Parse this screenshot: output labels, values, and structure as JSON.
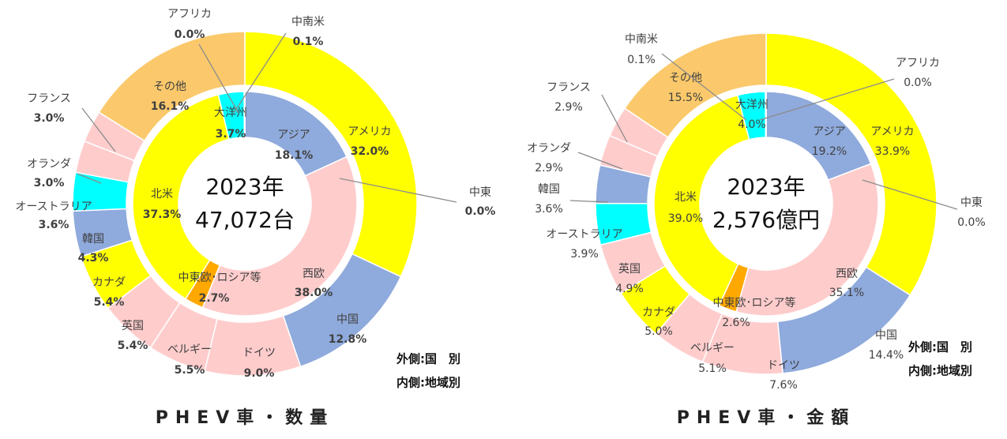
{
  "chart_data": [
    {
      "type": "donut",
      "title": "PHEV車・数量",
      "center_text": [
        "2023年",
        "47,072台"
      ],
      "notes": [
        "外側:国　別",
        "内側:地域別"
      ],
      "inner": {
        "categories": [
          "アジア",
          "中東",
          "西欧",
          "中東欧･ロシア等",
          "北米",
          "大洋州",
          "中南米",
          "アフリカ"
        ],
        "values": [
          18.1,
          0.0,
          38.0,
          2.7,
          37.3,
          3.7,
          0.1,
          0.0
        ],
        "value_labels": [
          "18.1%",
          "0.0%",
          "38.0%",
          "2.7%",
          "37.3%",
          "3.7%",
          "0.1%",
          "0.0%"
        ],
        "colors": [
          "#8faadc",
          "#ffcccc",
          "#ffcccc",
          "#ffa800",
          "#ffff00",
          "#00ffff",
          "#70ad47",
          "#c00000"
        ]
      },
      "outer": {
        "categories": [
          "アメリカ",
          "中国",
          "ドイツ",
          "ベルギー",
          "英国",
          "カナダ",
          "韓国",
          "オーストラリア",
          "オランダ",
          "フランス",
          "その他"
        ],
        "values": [
          32.0,
          12.8,
          9.0,
          5.5,
          5.4,
          5.4,
          4.3,
          3.6,
          3.0,
          3.0,
          16.1
        ],
        "value_labels": [
          "32.0%",
          "12.8%",
          "9.0%",
          "5.5%",
          "5.4%",
          "5.4%",
          "4.3%",
          "3.6%",
          "3.0%",
          "3.0%",
          "16.1%"
        ],
        "colors": [
          "#ffff00",
          "#8faadc",
          "#ffcccc",
          "#ffcccc",
          "#ffcccc",
          "#ffff00",
          "#8faadc",
          "#00ffff",
          "#ffcccc",
          "#ffcccc",
          "#fbc96b"
        ]
      }
    },
    {
      "type": "donut",
      "title": "PHEV車・金額",
      "center_text": [
        "2023年",
        "2,576億円"
      ],
      "notes": [
        "外側:国　別",
        "内側:地域別"
      ],
      "inner": {
        "categories": [
          "アジア",
          "中東",
          "西欧",
          "中東欧･ロシア等",
          "北米",
          "大洋州",
          "中南米",
          "アフリカ"
        ],
        "values": [
          19.2,
          0.0,
          35.1,
          2.6,
          39.0,
          4.0,
          0.1,
          0.0
        ],
        "value_labels": [
          "19.2%",
          "0.0%",
          "35.1%",
          "2.6%",
          "39.0%",
          "4.0%",
          "0.1%",
          "0.0%"
        ],
        "colors": [
          "#8faadc",
          "#ffcccc",
          "#ffcccc",
          "#ffa800",
          "#ffff00",
          "#00ffff",
          "#70ad47",
          "#c00000"
        ]
      },
      "outer": {
        "categories": [
          "アメリカ",
          "中国",
          "ドイツ",
          "ベルギー",
          "カナダ",
          "英国",
          "オーストラリア",
          "韓国",
          "オランダ",
          "フランス",
          "その他"
        ],
        "values": [
          33.9,
          14.4,
          7.6,
          5.1,
          5.0,
          4.9,
          3.9,
          3.6,
          2.9,
          2.9,
          15.5
        ],
        "value_labels": [
          "33.9%",
          "14.4%",
          "7.6%",
          "5.1%",
          "5.0%",
          "4.9%",
          "3.9%",
          "3.6%",
          "2.9%",
          "2.9%",
          "15.5%"
        ],
        "colors": [
          "#ffff00",
          "#8faadc",
          "#ffcccc",
          "#ffcccc",
          "#ffff00",
          "#ffcccc",
          "#00ffff",
          "#8faadc",
          "#ffcccc",
          "#ffcccc",
          "#fbc96b"
        ]
      }
    }
  ]
}
